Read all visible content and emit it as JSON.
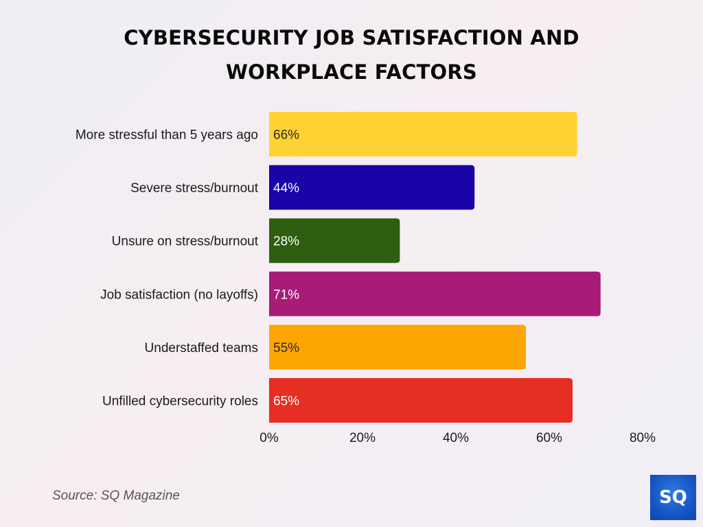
{
  "chart_data": {
    "type": "bar",
    "orientation": "horizontal",
    "title": "CYBERSECURITY JOB SATISFACTION AND WORKPLACE FACTORS",
    "title_lines": [
      "CYBERSECURITY JOB SATISFACTION AND",
      "WORKPLACE FACTORS"
    ],
    "categories": [
      "More stressful than 5 years ago",
      "Severe stress/burnout",
      "Unsure on stress/burnout",
      "Job satisfaction (no layoffs)",
      "Understaffed teams",
      "Unfilled cybersecurity roles"
    ],
    "values": [
      66,
      44,
      28,
      71,
      55,
      65
    ],
    "value_labels": [
      "66%",
      "44%",
      "28%",
      "71%",
      "55%",
      "65%"
    ],
    "colors": [
      "#ffd233",
      "#1a04a8",
      "#2f5e11",
      "#a81c78",
      "#fca503",
      "#e62e22"
    ],
    "label_colors": [
      "#2a2a2a",
      "#ffffff",
      "#ffffff",
      "#ffffff",
      "#2a2a2a",
      "#ffffff"
    ],
    "xlim": [
      0,
      80
    ],
    "xticks": [
      0,
      20,
      40,
      60,
      80
    ],
    "xtick_labels": [
      "0%",
      "20%",
      "40%",
      "60%",
      "80%"
    ],
    "xlabel": "",
    "ylabel": "",
    "grid": false,
    "legend": "none"
  },
  "footer": {
    "source": "Source: SQ Magazine",
    "logo_text": "SQ"
  }
}
